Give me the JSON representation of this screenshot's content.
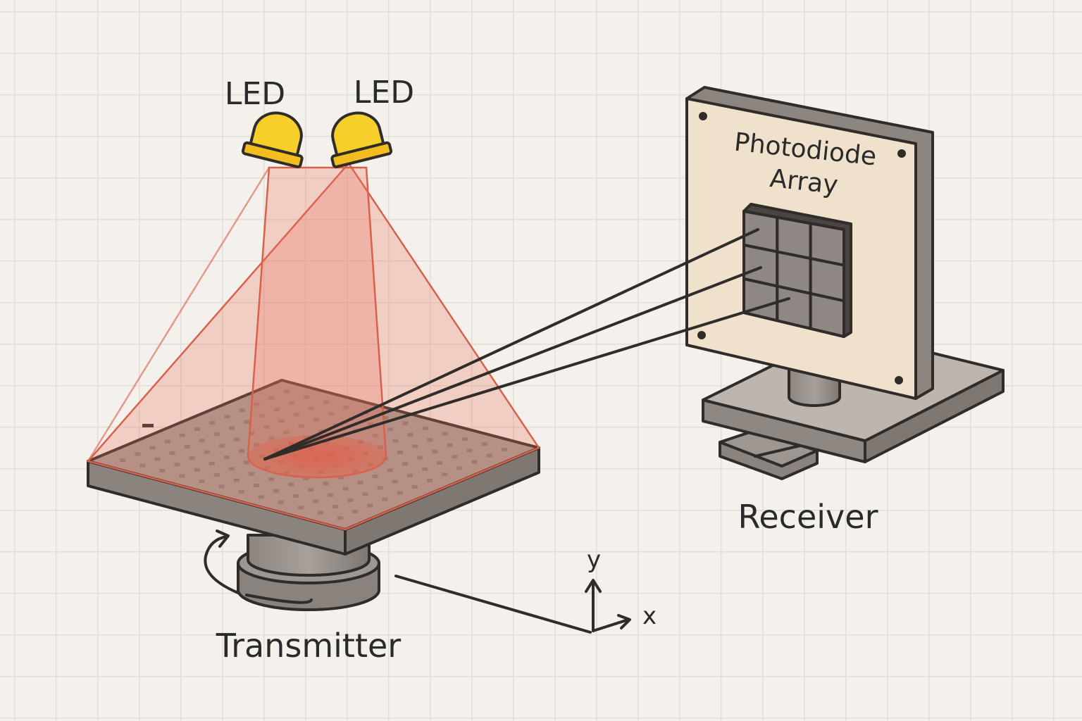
{
  "labels": {
    "led_left": "LED",
    "led_right": "LED",
    "photodiode_line1": "Photodiode",
    "photodiode_line2": "Array",
    "receiver": "Receiver",
    "transmitter": "Transmitter",
    "axis_y": "y",
    "axis_x": "x"
  },
  "components": {
    "led_count": 2,
    "photodiode_grid": {
      "rows": 3,
      "cols": 3
    },
    "optical_links": 3
  },
  "colors": {
    "background": "#f4f1ec",
    "grid": "#e2ddd6",
    "led_yellow": "#f6cf2a",
    "beam_red": "#e56a52",
    "platform_top": "#a39b95",
    "platform_side": "#8b837d",
    "receiver_panel": "#efe1cb",
    "outline": "#2f2c2a"
  }
}
